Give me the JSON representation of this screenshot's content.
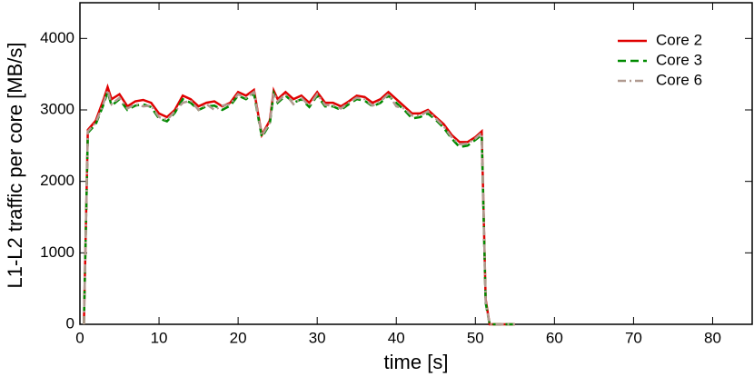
{
  "chart_data": {
    "type": "line",
    "xlabel": "time [s]",
    "ylabel": "L1-L2 traffic per core [MB/s]",
    "x": [
      0.5,
      1,
      2,
      3,
      3.5,
      4,
      5,
      6,
      7,
      8,
      9,
      10,
      11,
      12,
      13,
      14,
      15,
      16,
      17,
      18,
      19,
      20,
      21,
      22,
      23,
      24,
      24.5,
      25,
      26,
      27,
      28,
      29,
      30,
      31,
      32,
      33,
      34,
      35,
      36,
      37,
      38,
      39,
      40,
      41,
      42,
      43,
      44,
      45,
      46,
      47,
      48,
      49,
      50,
      50.8,
      51.3,
      51.8,
      55
    ],
    "series": [
      {
        "name": "Core 2",
        "color": "#e00000",
        "dash": "solid",
        "values": [
          0,
          2720,
          2850,
          3150,
          3320,
          3150,
          3220,
          3050,
          3120,
          3140,
          3100,
          2950,
          2900,
          3000,
          3200,
          3150,
          3050,
          3100,
          3120,
          3050,
          3100,
          3250,
          3200,
          3280,
          2650,
          2850,
          3270,
          3150,
          3250,
          3150,
          3200,
          3100,
          3250,
          3100,
          3100,
          3050,
          3120,
          3200,
          3180,
          3100,
          3150,
          3250,
          3150,
          3050,
          2950,
          2950,
          3000,
          2900,
          2800,
          2650,
          2550,
          2550,
          2620,
          2700,
          350,
          0,
          0
        ]
      },
      {
        "name": "Core 3",
        "color": "#008a00",
        "dash": "dashed",
        "values": [
          0,
          2680,
          2800,
          3080,
          3250,
          3060,
          3150,
          3000,
          3060,
          3080,
          3040,
          2880,
          2840,
          2960,
          3150,
          3100,
          3000,
          3050,
          3060,
          3000,
          3060,
          3200,
          3150,
          3230,
          2620,
          2800,
          3230,
          3100,
          3200,
          3100,
          3150,
          3040,
          3200,
          3050,
          3050,
          3000,
          3080,
          3150,
          3130,
          3050,
          3100,
          3200,
          3100,
          3000,
          2880,
          2900,
          2950,
          2860,
          2750,
          2600,
          2480,
          2500,
          2580,
          2650,
          300,
          0,
          0
        ]
      },
      {
        "name": "Core 6",
        "color": "#b09a90",
        "dash": "dashdot",
        "values": [
          0,
          2700,
          2820,
          3100,
          3280,
          3080,
          3170,
          3020,
          3080,
          3050,
          3060,
          2900,
          2860,
          2980,
          3100,
          3130,
          3000,
          3080,
          3000,
          3060,
          3080,
          3220,
          3170,
          3250,
          2640,
          2820,
          3240,
          3120,
          3220,
          3080,
          3170,
          3060,
          3220,
          3070,
          3060,
          3020,
          3100,
          3170,
          3150,
          3060,
          3120,
          3220,
          3050,
          3020,
          2920,
          2920,
          2980,
          2880,
          2770,
          2620,
          2520,
          2530,
          2600,
          2680,
          320,
          0,
          0
        ]
      }
    ],
    "xlim": [
      0,
      85
    ],
    "xticks": [
      0,
      10,
      20,
      30,
      40,
      50,
      60,
      70,
      80
    ],
    "ylim": [
      0,
      4500
    ],
    "yticks": [
      0,
      1000,
      2000,
      3000,
      4000
    ],
    "legend": "upper right",
    "grid": false
  }
}
